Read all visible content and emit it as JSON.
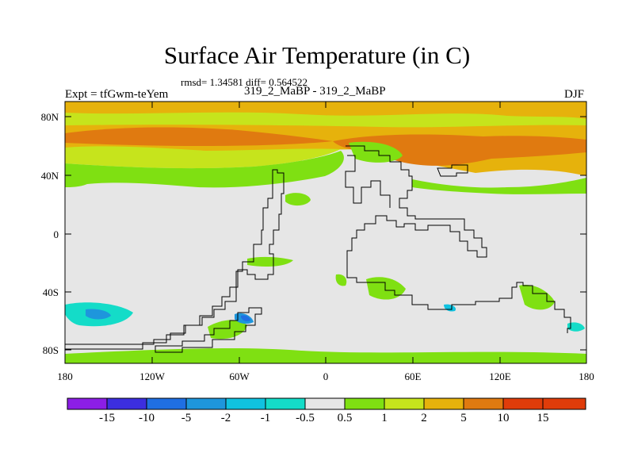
{
  "header": {
    "title": "Surface Air Temperature (in C)",
    "stats": "rmsd= 1.34581 diff= 0.564522",
    "experiment": "Expt = tfGwm-teYem",
    "case": "319_2_MaBP - 319_2_MaBP",
    "season": "DJF"
  },
  "map": {
    "lat_ticks": [
      "80N",
      "40N",
      "0",
      "40S",
      "80S"
    ],
    "lon_ticks": [
      "180",
      "120W",
      "60W",
      "0",
      "60E",
      "120E",
      "180"
    ]
  },
  "colorbar": {
    "labels": [
      "-15",
      "-10",
      "-5",
      "-2",
      "-1",
      "-0.5",
      "0.5",
      "1",
      "2",
      "5",
      "10",
      "15"
    ],
    "colors": [
      "#8c1ee6",
      "#3c2ee0",
      "#1f6fe3",
      "#1e96dc",
      "#10c2e0",
      "#14dcc8",
      "#e6e6e6",
      "#7fe012",
      "#c6e41c",
      "#e6b20c",
      "#e07a10",
      "#e03c0a"
    ]
  }
}
